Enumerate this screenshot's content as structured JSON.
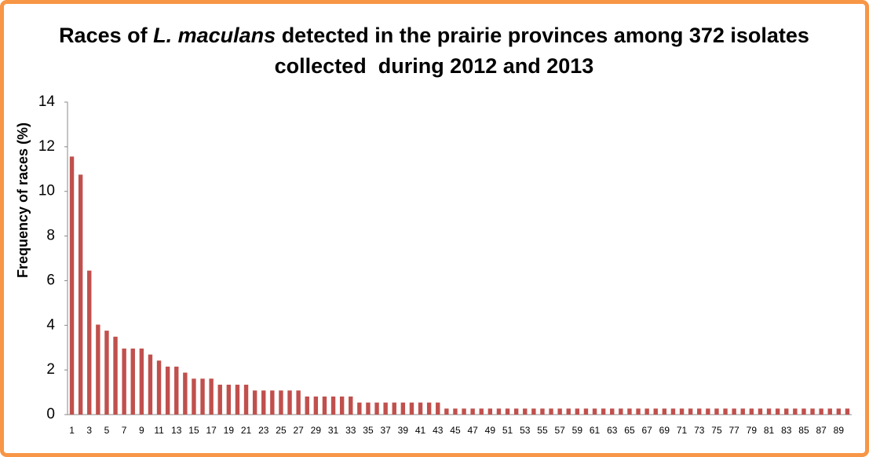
{
  "chart_data": {
    "type": "bar",
    "title_lines": [
      [
        "Races of ",
        "L. maculans",
        " detected in the prairie provinces among 372 isolates"
      ],
      [
        "collected  during 2012 and 2013"
      ]
    ],
    "y_label": "Frequency of races (%)",
    "categories": [
      "1",
      null,
      "3",
      null,
      "5",
      null,
      "7",
      null,
      "9",
      null,
      "11",
      null,
      "13",
      null,
      "15",
      null,
      "17",
      null,
      "19",
      null,
      "21",
      null,
      "23",
      null,
      "25",
      null,
      "27",
      null,
      "29",
      null,
      "31",
      null,
      "33",
      null,
      "35",
      null,
      "37",
      null,
      "39",
      null,
      "41",
      null,
      "43",
      null,
      "45",
      null,
      "47",
      null,
      "49",
      null,
      "51",
      null,
      "53",
      null,
      "55",
      null,
      "57",
      null,
      "59",
      null,
      "61",
      null,
      "63",
      null,
      "65",
      null,
      "67",
      null,
      "69",
      null,
      "71",
      null,
      "73",
      null,
      "75",
      null,
      "77",
      null,
      "79",
      null,
      "81",
      null,
      "83",
      null,
      "85",
      null,
      "87",
      null,
      "89",
      null
    ],
    "values": [
      11.56,
      10.75,
      6.45,
      4.03,
      3.76,
      3.49,
      2.96,
      2.96,
      2.96,
      2.69,
      2.42,
      2.15,
      2.15,
      1.88,
      1.61,
      1.61,
      1.61,
      1.34,
      1.34,
      1.34,
      1.34,
      1.08,
      1.08,
      1.08,
      1.08,
      1.08,
      1.08,
      0.81,
      0.81,
      0.81,
      0.81,
      0.81,
      0.81,
      0.54,
      0.54,
      0.54,
      0.54,
      0.54,
      0.54,
      0.54,
      0.54,
      0.54,
      0.54,
      0.27,
      0.27,
      0.27,
      0.27,
      0.27,
      0.27,
      0.27,
      0.27,
      0.27,
      0.27,
      0.27,
      0.27,
      0.27,
      0.27,
      0.27,
      0.27,
      0.27,
      0.27,
      0.27,
      0.27,
      0.27,
      0.27,
      0.27,
      0.27,
      0.27,
      0.27,
      0.27,
      0.27,
      0.27,
      0.27,
      0.27,
      0.27,
      0.27,
      0.27,
      0.27,
      0.27,
      0.27,
      0.27,
      0.27,
      0.27,
      0.27,
      0.27,
      0.27,
      0.27,
      0.27,
      0.27,
      0.27
    ],
    "color": "#c0504d",
    "ylim": [
      0,
      14
    ],
    "yticks": [
      0,
      2,
      4,
      6,
      8,
      10,
      12,
      14
    ],
    "grid": false
  }
}
